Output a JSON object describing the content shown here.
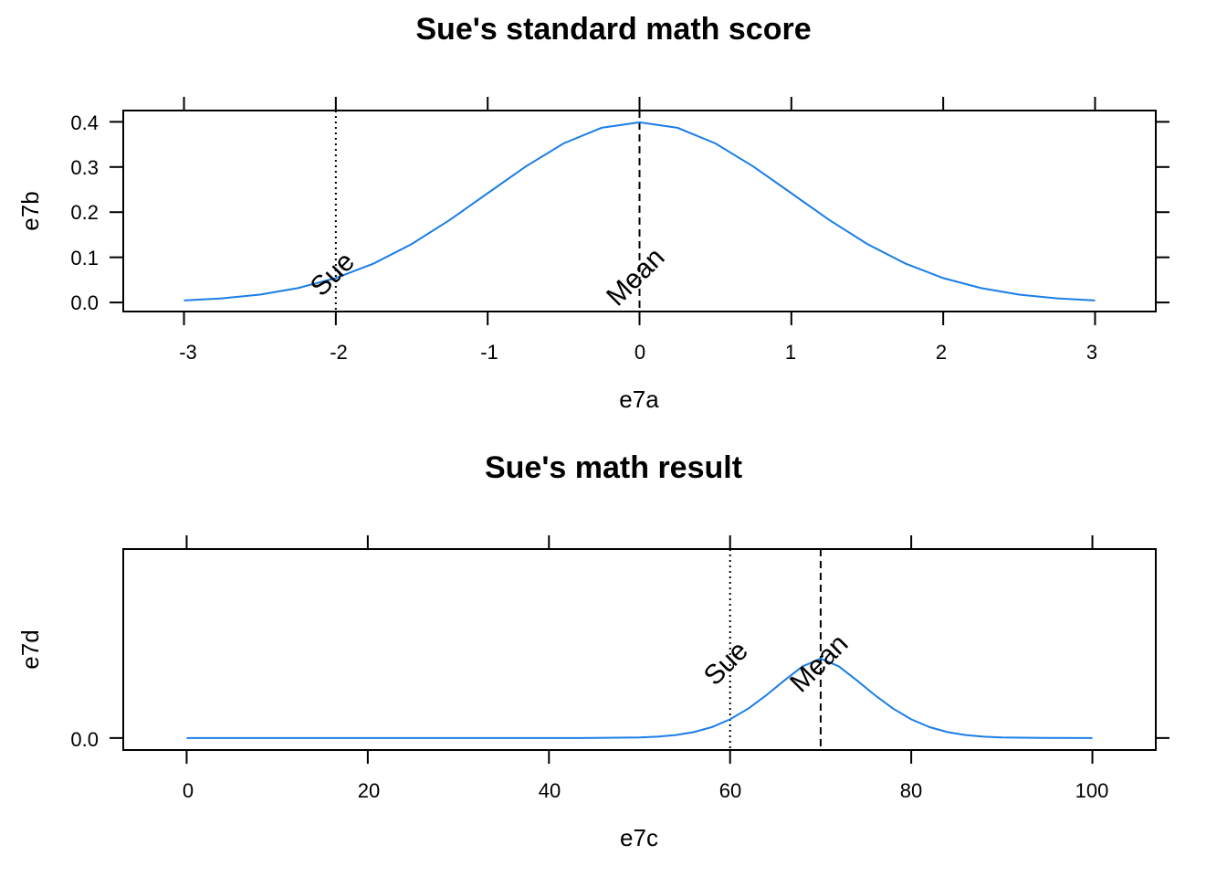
{
  "chart_data": [
    {
      "type": "line",
      "title": "Sue's standard math score",
      "xlabel": "e7a",
      "ylabel": "e7b",
      "xlim": [
        -3.4,
        3.4
      ],
      "ylim": [
        -0.02,
        0.425
      ],
      "xticks": [
        -3,
        -2,
        -1,
        0,
        1,
        2,
        3
      ],
      "xtick_labels": [
        "-3",
        "-2",
        "-1",
        "0",
        "1",
        "2",
        "3"
      ],
      "yticks": [
        0.0,
        0.1,
        0.2,
        0.3,
        0.4
      ],
      "ytick_labels": [
        "0.0",
        "0.1",
        "0.2",
        "0.3",
        "0.4"
      ],
      "curve": {
        "color": "#1a7ee6",
        "x": [
          -3,
          -2.75,
          -2.5,
          -2.25,
          -2,
          -1.75,
          -1.5,
          -1.25,
          -1,
          -0.75,
          -0.5,
          -0.25,
          0,
          0.25,
          0.5,
          0.75,
          1,
          1.25,
          1.5,
          1.75,
          2,
          2.25,
          2.5,
          2.75,
          3
        ],
        "y": [
          0.0044,
          0.0091,
          0.0175,
          0.0317,
          0.054,
          0.0863,
          0.1295,
          0.1826,
          0.242,
          0.3011,
          0.3521,
          0.3867,
          0.3989,
          0.3867,
          0.3521,
          0.3011,
          0.242,
          0.1826,
          0.1295,
          0.0863,
          0.054,
          0.0317,
          0.0175,
          0.0091,
          0.0044
        ]
      },
      "vlines": [
        {
          "x": -2,
          "style": "dotted",
          "label": "Sue"
        },
        {
          "x": 0,
          "style": "dashed",
          "label": "Mean"
        }
      ]
    },
    {
      "type": "line",
      "title": "Sue's math result",
      "xlabel": "e7c",
      "ylabel": "e7d",
      "xlim": [
        -7,
        107
      ],
      "ylim": [
        -0.0027,
        0.0425
      ],
      "xticks": [
        0,
        20,
        40,
        60,
        80,
        100
      ],
      "xtick_labels": [
        "0",
        "20",
        "40",
        "60",
        "80",
        "100"
      ],
      "yticks": [
        0.0
      ],
      "ytick_labels": [
        "0.0"
      ],
      "curve": {
        "color": "#1a7ee6",
        "x": [
          0,
          10,
          20,
          30,
          40,
          45,
          50,
          52,
          54,
          56,
          58,
          60,
          62,
          64,
          66,
          68,
          70,
          72,
          74,
          76,
          78,
          80,
          82,
          84,
          86,
          88,
          90,
          95,
          100
        ],
        "y": [
          0,
          0,
          0,
          0,
          0,
          2e-05,
          0.00013,
          0.0003,
          0.00066,
          0.00133,
          0.00246,
          0.0042,
          0.00661,
          0.00963,
          0.01295,
          0.01612,
          0.01785,
          0.01612,
          0.01295,
          0.00963,
          0.00661,
          0.0042,
          0.00246,
          0.00133,
          0.00066,
          0.0003,
          0.00013,
          2e-05,
          0
        ]
      },
      "vlines": [
        {
          "x": 60,
          "style": "dotted",
          "label": "Sue"
        },
        {
          "x": 70,
          "style": "dashed",
          "label": "Mean"
        }
      ]
    }
  ]
}
